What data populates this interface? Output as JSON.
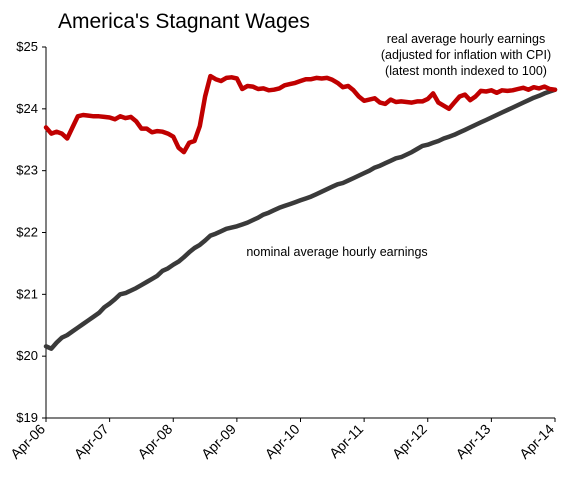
{
  "chart_data": {
    "type": "line",
    "title": "America's Stagnant Wages",
    "xlabel": "",
    "ylabel": "",
    "ylim": [
      19,
      25
    ],
    "y_ticks": [
      "$19",
      "$20",
      "$21",
      "$22",
      "$23",
      "$24",
      "$25"
    ],
    "x_ticks": [
      "Apr-06",
      "Apr-07",
      "Apr-08",
      "Apr-09",
      "Apr-10",
      "Apr-11",
      "Apr-12",
      "Apr-13",
      "Apr-14"
    ],
    "grid": false,
    "annotations": [
      {
        "lines": [
          "real average hourly earnings",
          "(adjusted for inflation with CPI)",
          "(latest month indexed to 100)"
        ],
        "series": "real"
      },
      {
        "lines": [
          "nominal average hourly earnings"
        ],
        "series": "nominal"
      }
    ],
    "series": [
      {
        "id": "real",
        "color": "#c00000",
        "x": [
          "2006-04",
          "2006-05",
          "2006-06",
          "2006-07",
          "2006-08",
          "2006-09",
          "2006-10",
          "2006-11",
          "2006-12",
          "2007-01",
          "2007-02",
          "2007-03",
          "2007-04",
          "2007-05",
          "2007-06",
          "2007-07",
          "2007-08",
          "2007-09",
          "2007-10",
          "2007-11",
          "2007-12",
          "2008-01",
          "2008-02",
          "2008-03",
          "2008-04",
          "2008-05",
          "2008-06",
          "2008-07",
          "2008-08",
          "2008-09",
          "2008-10",
          "2008-11",
          "2008-12",
          "2009-01",
          "2009-02",
          "2009-03",
          "2009-04",
          "2009-05",
          "2009-06",
          "2009-07",
          "2009-08",
          "2009-09",
          "2009-10",
          "2009-11",
          "2009-12",
          "2010-01",
          "2010-02",
          "2010-03",
          "2010-04",
          "2010-05",
          "2010-06",
          "2010-07",
          "2010-08",
          "2010-09",
          "2010-10",
          "2010-11",
          "2010-12",
          "2011-01",
          "2011-02",
          "2011-03",
          "2011-04",
          "2011-05",
          "2011-06",
          "2011-07",
          "2011-08",
          "2011-09",
          "2011-10",
          "2011-11",
          "2011-12",
          "2012-01",
          "2012-02",
          "2012-03",
          "2012-04",
          "2012-05",
          "2012-06",
          "2012-07",
          "2012-08",
          "2012-09",
          "2012-10",
          "2012-11",
          "2012-12",
          "2013-01",
          "2013-02",
          "2013-03",
          "2013-04",
          "2013-05",
          "2013-06",
          "2013-07",
          "2013-08",
          "2013-09",
          "2013-10",
          "2013-11",
          "2013-12",
          "2014-01",
          "2014-02",
          "2014-03",
          "2014-04"
        ],
        "values": [
          23.7,
          23.6,
          23.63,
          23.6,
          23.52,
          23.7,
          23.88,
          23.9,
          23.89,
          23.88,
          23.88,
          23.87,
          23.86,
          23.83,
          23.88,
          23.85,
          23.87,
          23.8,
          23.68,
          23.68,
          23.62,
          23.64,
          23.63,
          23.6,
          23.55,
          23.37,
          23.3,
          23.45,
          23.48,
          23.72,
          24.2,
          24.53,
          24.48,
          24.45,
          24.5,
          24.51,
          24.49,
          24.32,
          24.37,
          24.36,
          24.32,
          24.33,
          24.3,
          24.31,
          24.33,
          24.38,
          24.4,
          24.42,
          24.45,
          24.48,
          24.48,
          24.5,
          24.49,
          24.5,
          24.47,
          24.42,
          24.35,
          24.37,
          24.3,
          24.2,
          24.13,
          24.15,
          24.17,
          24.1,
          24.08,
          24.15,
          24.11,
          24.12,
          24.11,
          24.1,
          24.12,
          24.12,
          24.16,
          24.25,
          24.1,
          24.05,
          24.0,
          24.1,
          24.2,
          24.23,
          24.14,
          24.2,
          24.29,
          24.28,
          24.3,
          24.26,
          24.3,
          24.29,
          24.3,
          24.32,
          24.34,
          24.31,
          24.35,
          24.33,
          24.36,
          24.32,
          24.31
        ]
      },
      {
        "id": "nominal",
        "color": "#3a3a3a",
        "x": [
          "2006-04",
          "2006-05",
          "2006-06",
          "2006-07",
          "2006-08",
          "2006-09",
          "2006-10",
          "2006-11",
          "2006-12",
          "2007-01",
          "2007-02",
          "2007-03",
          "2007-04",
          "2007-05",
          "2007-06",
          "2007-07",
          "2007-08",
          "2007-09",
          "2007-10",
          "2007-11",
          "2007-12",
          "2008-01",
          "2008-02",
          "2008-03",
          "2008-04",
          "2008-05",
          "2008-06",
          "2008-07",
          "2008-08",
          "2008-09",
          "2008-10",
          "2008-11",
          "2008-12",
          "2009-01",
          "2009-02",
          "2009-03",
          "2009-04",
          "2009-05",
          "2009-06",
          "2009-07",
          "2009-08",
          "2009-09",
          "2009-10",
          "2009-11",
          "2009-12",
          "2010-01",
          "2010-02",
          "2010-03",
          "2010-04",
          "2010-05",
          "2010-06",
          "2010-07",
          "2010-08",
          "2010-09",
          "2010-10",
          "2010-11",
          "2010-12",
          "2011-01",
          "2011-02",
          "2011-03",
          "2011-04",
          "2011-05",
          "2011-06",
          "2011-07",
          "2011-08",
          "2011-09",
          "2011-10",
          "2011-11",
          "2011-12",
          "2012-01",
          "2012-02",
          "2012-03",
          "2012-04",
          "2012-05",
          "2012-06",
          "2012-07",
          "2012-08",
          "2012-09",
          "2012-10",
          "2012-11",
          "2012-12",
          "2013-01",
          "2013-02",
          "2013-03",
          "2013-04",
          "2013-05",
          "2013-06",
          "2013-07",
          "2013-08",
          "2013-09",
          "2013-10",
          "2013-11",
          "2013-12",
          "2014-01",
          "2014-02",
          "2014-03",
          "2014-04"
        ],
        "values": [
          20.16,
          20.12,
          20.22,
          20.3,
          20.34,
          20.4,
          20.46,
          20.52,
          20.58,
          20.64,
          20.7,
          20.79,
          20.85,
          20.92,
          21.0,
          21.02,
          21.06,
          21.1,
          21.15,
          21.2,
          21.25,
          21.3,
          21.38,
          21.42,
          21.48,
          21.53,
          21.6,
          21.68,
          21.75,
          21.8,
          21.87,
          21.95,
          21.98,
          22.02,
          22.06,
          22.08,
          22.1,
          22.13,
          22.16,
          22.2,
          22.24,
          22.29,
          22.32,
          22.36,
          22.4,
          22.43,
          22.46,
          22.49,
          22.52,
          22.55,
          22.58,
          22.62,
          22.66,
          22.7,
          22.74,
          22.78,
          22.8,
          22.84,
          22.88,
          22.92,
          22.96,
          23.0,
          23.05,
          23.08,
          23.12,
          23.16,
          23.2,
          23.22,
          23.26,
          23.3,
          23.35,
          23.4,
          23.42,
          23.45,
          23.48,
          23.52,
          23.55,
          23.58,
          23.62,
          23.66,
          23.7,
          23.74,
          23.78,
          23.82,
          23.86,
          23.9,
          23.94,
          23.98,
          24.02,
          24.06,
          24.1,
          24.14,
          24.18,
          24.21,
          24.25,
          24.28,
          24.31
        ]
      }
    ]
  }
}
